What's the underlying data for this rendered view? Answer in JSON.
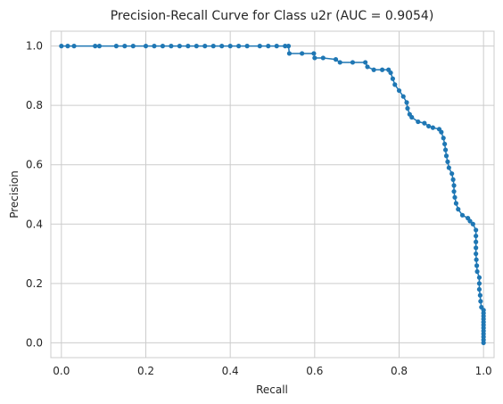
{
  "chart_data": {
    "type": "line",
    "title": "Precision-Recall Curve for Class u2r (AUC = 0.9054)",
    "xlabel": "Recall",
    "ylabel": "Precision",
    "xlim": [
      -0.025,
      1.025
    ],
    "ylim": [
      -0.05,
      1.05
    ],
    "xticks": [
      "0.0",
      "0.2",
      "0.4",
      "0.6",
      "0.8",
      "1.0"
    ],
    "yticks": [
      "0.0",
      "0.2",
      "0.4",
      "0.6",
      "0.8",
      "1.0"
    ],
    "grid": true,
    "series_color": "#1f77b4",
    "marker": "circle",
    "points": [
      [
        1.0,
        0.0
      ],
      [
        1.0,
        0.01
      ],
      [
        1.0,
        0.02
      ],
      [
        1.0,
        0.03
      ],
      [
        1.0,
        0.04
      ],
      [
        1.0,
        0.05
      ],
      [
        1.0,
        0.06
      ],
      [
        1.0,
        0.07
      ],
      [
        1.0,
        0.08
      ],
      [
        1.0,
        0.09
      ],
      [
        1.0,
        0.1
      ],
      [
        1.0,
        0.11
      ],
      [
        0.995,
        0.12
      ],
      [
        0.993,
        0.14
      ],
      [
        0.992,
        0.16
      ],
      [
        0.99,
        0.18
      ],
      [
        0.99,
        0.2
      ],
      [
        0.99,
        0.22
      ],
      [
        0.985,
        0.24
      ],
      [
        0.984,
        0.26
      ],
      [
        0.983,
        0.28
      ],
      [
        0.982,
        0.3
      ],
      [
        0.982,
        0.32
      ],
      [
        0.982,
        0.34
      ],
      [
        0.982,
        0.36
      ],
      [
        0.982,
        0.38
      ],
      [
        0.975,
        0.4
      ],
      [
        0.968,
        0.41
      ],
      [
        0.963,
        0.42
      ],
      [
        0.95,
        0.43
      ],
      [
        0.94,
        0.45
      ],
      [
        0.935,
        0.47
      ],
      [
        0.932,
        0.49
      ],
      [
        0.93,
        0.51
      ],
      [
        0.93,
        0.53
      ],
      [
        0.928,
        0.55
      ],
      [
        0.925,
        0.57
      ],
      [
        0.918,
        0.59
      ],
      [
        0.915,
        0.61
      ],
      [
        0.912,
        0.63
      ],
      [
        0.91,
        0.65
      ],
      [
        0.908,
        0.67
      ],
      [
        0.905,
        0.69
      ],
      [
        0.9,
        0.71
      ],
      [
        0.895,
        0.72
      ],
      [
        0.88,
        0.725
      ],
      [
        0.87,
        0.73
      ],
      [
        0.86,
        0.74
      ],
      [
        0.845,
        0.745
      ],
      [
        0.83,
        0.76
      ],
      [
        0.825,
        0.77
      ],
      [
        0.82,
        0.79
      ],
      [
        0.818,
        0.81
      ],
      [
        0.81,
        0.83
      ],
      [
        0.8,
        0.85
      ],
      [
        0.79,
        0.87
      ],
      [
        0.785,
        0.89
      ],
      [
        0.78,
        0.91
      ],
      [
        0.775,
        0.92
      ],
      [
        0.76,
        0.92
      ],
      [
        0.74,
        0.92
      ],
      [
        0.725,
        0.93
      ],
      [
        0.72,
        0.945
      ],
      [
        0.69,
        0.945
      ],
      [
        0.66,
        0.945
      ],
      [
        0.65,
        0.955
      ],
      [
        0.62,
        0.96
      ],
      [
        0.6,
        0.96
      ],
      [
        0.598,
        0.975
      ],
      [
        0.57,
        0.975
      ],
      [
        0.54,
        0.975
      ],
      [
        0.538,
        1.0
      ],
      [
        0.53,
        1.0
      ],
      [
        0.51,
        1.0
      ],
      [
        0.49,
        1.0
      ],
      [
        0.47,
        1.0
      ],
      [
        0.44,
        1.0
      ],
      [
        0.42,
        1.0
      ],
      [
        0.4,
        1.0
      ],
      [
        0.38,
        1.0
      ],
      [
        0.36,
        1.0
      ],
      [
        0.34,
        1.0
      ],
      [
        0.32,
        1.0
      ],
      [
        0.3,
        1.0
      ],
      [
        0.28,
        1.0
      ],
      [
        0.26,
        1.0
      ],
      [
        0.24,
        1.0
      ],
      [
        0.22,
        1.0
      ],
      [
        0.2,
        1.0
      ],
      [
        0.17,
        1.0
      ],
      [
        0.15,
        1.0
      ],
      [
        0.13,
        1.0
      ],
      [
        0.09,
        1.0
      ],
      [
        0.08,
        1.0
      ],
      [
        0.03,
        1.0
      ],
      [
        0.015,
        1.0
      ],
      [
        0.0,
        1.0
      ]
    ]
  }
}
